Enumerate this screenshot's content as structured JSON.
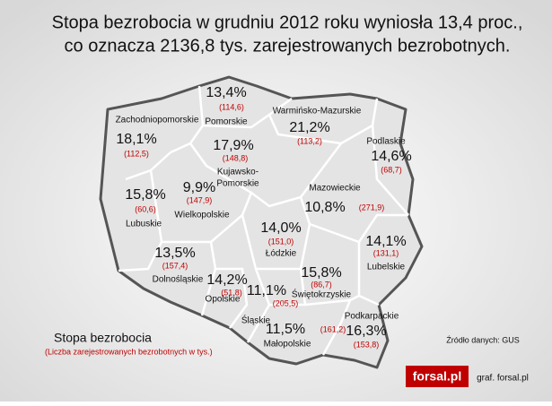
{
  "title": {
    "line1": "Stopa bezrobocia w grudniu 2012 roku wyniosła 13,4 proc.,",
    "line2": "co oznacza 2136,8 tys. zarejestrowanych bezrobotnych."
  },
  "regions": [
    {
      "name": "Pomorskie",
      "rate": "13,4%",
      "count": "(114,6)"
    },
    {
      "name": "Zachodniopomorskie",
      "rate": "18,1%",
      "count": "(112,5)"
    },
    {
      "name": "Warmińsko-Mazurskie",
      "rate": "21,2%",
      "count": "(113,2)"
    },
    {
      "name": "Podlaskie",
      "rate": "14,6%",
      "count": "(68,7)"
    },
    {
      "name": [
        "Kujawsko-",
        "Pomorskie"
      ],
      "rate": "17,9%",
      "count": "(148,8)"
    },
    {
      "name": "Wielkopolskie",
      "rate": "9,9%",
      "count": "(147,9)"
    },
    {
      "name": "Lubuskie",
      "rate": "15,8%",
      "count": "(60,6)"
    },
    {
      "name": "Mazowieckie",
      "rate": "10,8%",
      "count": "(271,9)"
    },
    {
      "name": "Łódzkie",
      "rate": "14,0%",
      "count": "(151,0)"
    },
    {
      "name": "Lubelskie",
      "rate": "14,1%",
      "count": "(131,1)"
    },
    {
      "name": "Dolnośląskie",
      "rate": "13,5%",
      "count": "(157,4)"
    },
    {
      "name": "Opolskie",
      "rate": "14,2%",
      "count": "(51,8)"
    },
    {
      "name": "Świętokrzyskie",
      "rate": "15,8%",
      "count": "(86,7)"
    },
    {
      "name": "Śląskie",
      "rate": "11,1%",
      "count": "(205,5)"
    },
    {
      "name": "Małopolskie",
      "rate": "11,5%",
      "count": "(161,2)"
    },
    {
      "name": "Podkarpackie",
      "rate": "16,3%",
      "count": "(153,8)"
    }
  ],
  "legend": {
    "title": "Stopa bezrobocia",
    "subtitle": "(Liczba zarejestrowanych bezrobotnych w tys.)"
  },
  "source": "Źródło danych: GUS",
  "logo": "forsal.pl",
  "credit": "graf. forsal.pl"
}
